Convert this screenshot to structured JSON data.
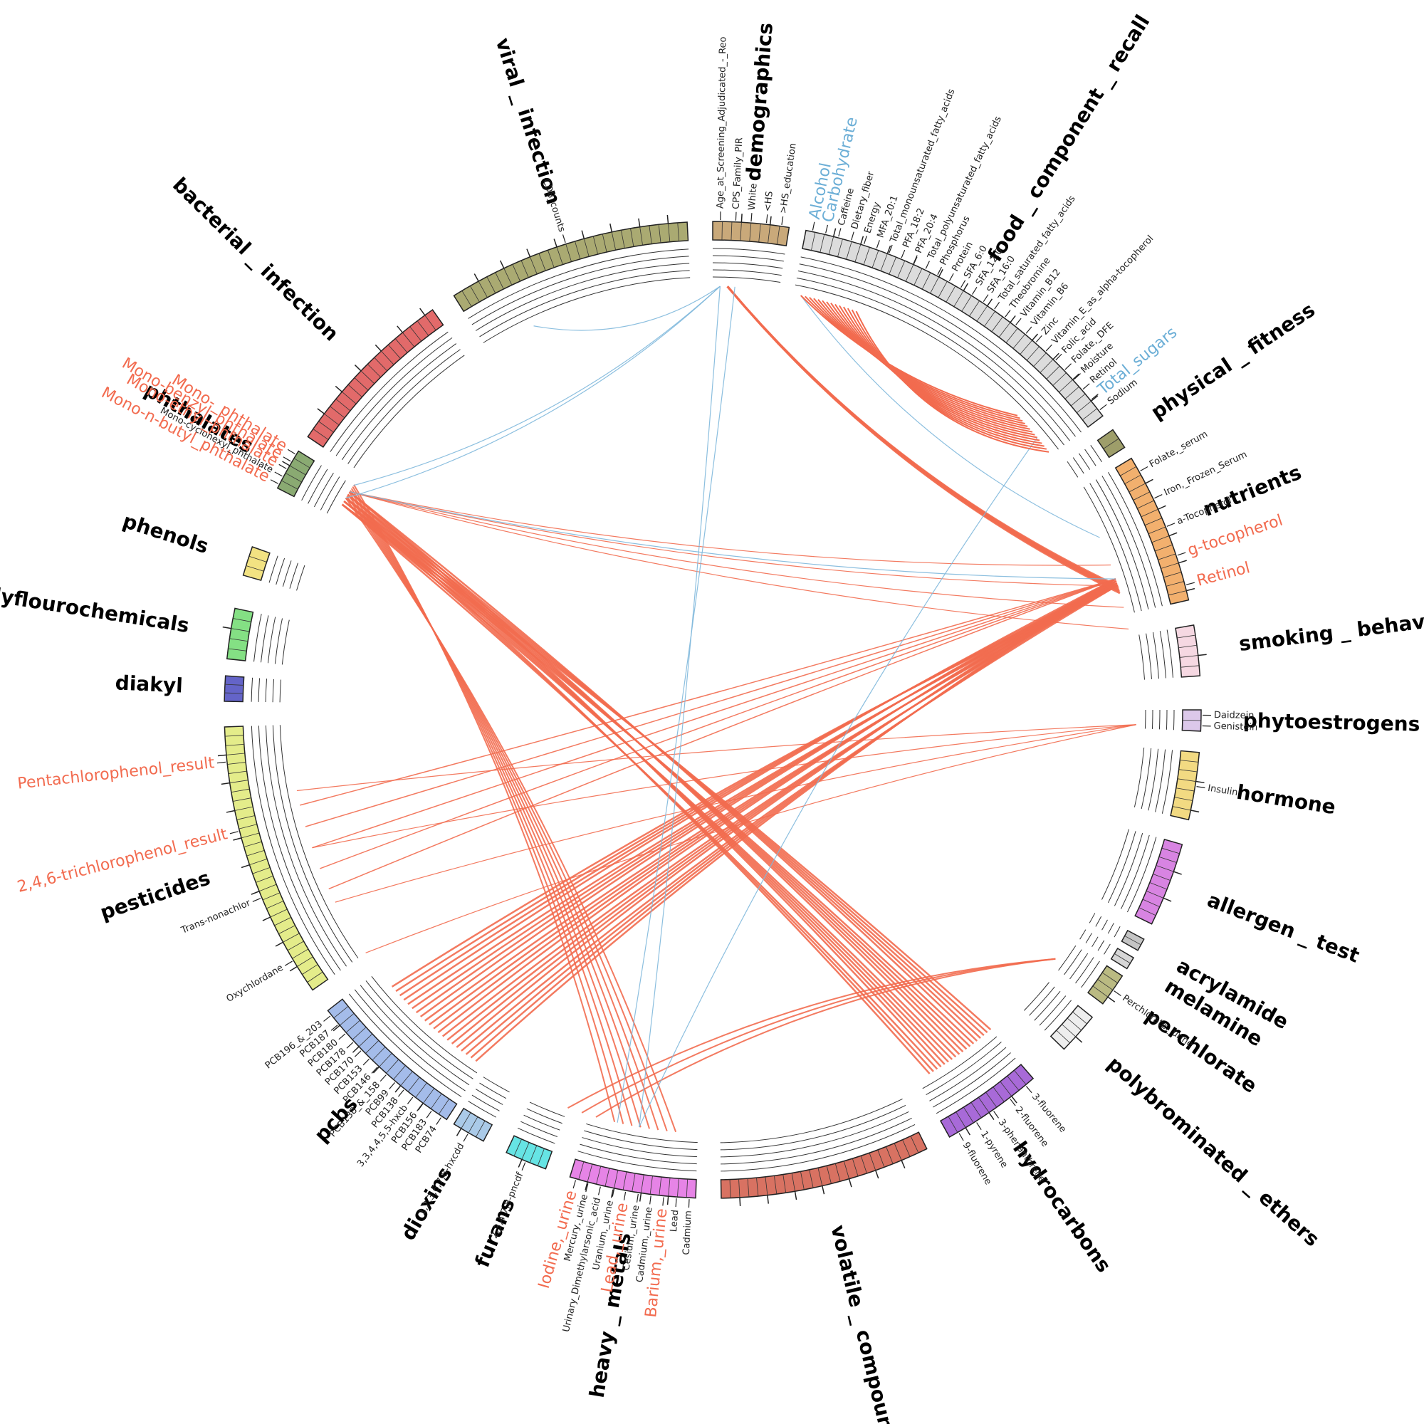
{
  "groups": [
    {
      "name": "demographics",
      "color": "#c9a97a",
      "features": [
        {
          "label": "Age_at_Screening_Adjudicated_-_Reo"
        },
        {
          "label": "CPS_Family_PIR"
        },
        {
          "label": "White"
        },
        {
          "label": "<HS"
        },
        {
          "label": ">HS_education"
        }
      ]
    },
    {
      "name": "food _ component _ recall",
      "color": "#dcdcdc",
      "features": [
        {
          "label": "Alcohol",
          "color": "#6baed6"
        },
        {
          "label": "Carbohydrate",
          "color": "#6baed6"
        },
        {
          "label": "Caffeine"
        },
        {
          "label": "Dietary_fiber"
        },
        {
          "label": "Energy"
        },
        {
          "label": "MFA_20:1"
        },
        {
          "label": "Total_monounsaturated_fatty_acids"
        },
        {
          "label": "PFA_18:2"
        },
        {
          "label": "PFA_20:4"
        },
        {
          "label": "Total_polyunsaturated_fatty_acids"
        },
        {
          "label": "Phosphorus"
        },
        {
          "label": "Protein"
        },
        {
          "label": "SFA_6:0"
        },
        {
          "label": "SFA_12:0"
        },
        {
          "label": "SFA_16:0"
        },
        {
          "label": "Total_saturated_fatty_acids"
        },
        {
          "label": "Theobromine"
        },
        {
          "label": "Vitamin_B12"
        },
        {
          "label": "Vitamin_B6"
        },
        {
          "label": "Zinc"
        },
        {
          "label": "Vitamin_E_as_alpha-tocopherol"
        },
        {
          "label": "Folic_acid"
        },
        {
          "label": "Folate,_DFE"
        },
        {
          "label": "Moisture"
        },
        {
          "label": "Retinol"
        },
        {
          "label": "Total_sugars",
          "color": "#6baed6"
        },
        {
          "label": "Sodium"
        }
      ]
    },
    {
      "name": "physical _ fitness",
      "color": "#9e9e6a",
      "features": []
    },
    {
      "name": "nutrients",
      "color": "#f2b06e",
      "features": [
        {
          "label": "Folate,_serum"
        },
        {
          "label": "Iron,_Frozen_Serum"
        },
        {
          "label": "a-Tocopherol"
        },
        {
          "label": "g-tocopherol",
          "color": "#f26b4f"
        },
        {
          "label": "Retinol",
          "color": "#f26b4f"
        }
      ]
    },
    {
      "name": "smoking _ behavior",
      "color": "#f6d8e2",
      "features": []
    },
    {
      "name": "phytoestrogens",
      "color": "#dcc8ea",
      "features": [
        {
          "label": "Daidzein"
        },
        {
          "label": "Genistein"
        }
      ]
    },
    {
      "name": "hormone",
      "color": "#f2da82",
      "features": [
        {
          "label": "Insulin"
        }
      ]
    },
    {
      "name": "allergen _ test",
      "color": "#d884e2",
      "features": []
    },
    {
      "name": "acrylamide",
      "color": "#c4c4c4",
      "features": []
    },
    {
      "name": "melamine",
      "color": "#d6d6d6",
      "features": []
    },
    {
      "name": "perchlorate",
      "color": "#baba82",
      "features": [
        {
          "label": "Perchlorate,_urine"
        }
      ]
    },
    {
      "name": "polybrominated _ ethers",
      "color": "#eeeeee",
      "features": []
    },
    {
      "name": "hydrocarbons",
      "color": "#a86ad8",
      "features": [
        {
          "label": "3-fluorene"
        },
        {
          "label": "2-fluorene"
        },
        {
          "label": "3-phenanthrene"
        },
        {
          "label": "1-pyrene"
        },
        {
          "label": "9-fluorene"
        }
      ]
    },
    {
      "name": "volatile _ compounds",
      "color": "#d87262",
      "features": []
    },
    {
      "name": "heavy _ metals",
      "color": "#e684e6",
      "features": [
        {
          "label": "Cadmium"
        },
        {
          "label": "Lead"
        },
        {
          "label": "Barium,_urine",
          "color": "#f26b4f"
        },
        {
          "label": "Cadmium,_urine"
        },
        {
          "label": "Cesium,_urine"
        },
        {
          "label": "Lead,_urine",
          "color": "#f26b4f"
        },
        {
          "label": "Uranium,_urine"
        },
        {
          "label": "Urinary_Dimethylarsonic_acid"
        },
        {
          "label": "Mercury,_urine"
        },
        {
          "label": "Iodine,_urine",
          "color": "#f26b4f"
        }
      ]
    },
    {
      "name": "furans",
      "color": "#66e4e4",
      "features": [
        {
          "label": "2,3,4,7,8-pncdf"
        }
      ]
    },
    {
      "name": "dioxins",
      "color": "#aacae8",
      "features": [
        {
          "label": "1,2,3,6,7,8-hxcdd"
        }
      ]
    },
    {
      "name": "pcbs",
      "color": "#a4bcea",
      "features": [
        {
          "label": "PCB74"
        },
        {
          "label": "PCB183"
        },
        {
          "label": "PCB156"
        },
        {
          "label": "3,3,4,4,5,5-hxcb"
        },
        {
          "label": "PCB138"
        },
        {
          "label": "PCB99"
        },
        {
          "label": "PCB138_&_158"
        },
        {
          "label": "PCB146"
        },
        {
          "label": "PCB153"
        },
        {
          "label": "PCB170"
        },
        {
          "label": "PCB178"
        },
        {
          "label": "PCB180"
        },
        {
          "label": "PCB187"
        },
        {
          "label": "PCB196_&_203"
        }
      ]
    },
    {
      "name": "pesticides",
      "color": "#e4ec8a",
      "features": [
        {
          "label": "Oxychlordane"
        },
        {
          "label": "Trans-nonachlor"
        },
        {
          "label": "2,4,6-trichlorophenol_result",
          "color": "#f26b4f"
        },
        {
          "label": "Pentachlorophenol_result",
          "color": "#f26b4f"
        }
      ]
    },
    {
      "name": "diakyl",
      "color": "#6464c8",
      "features": []
    },
    {
      "name": "polyflourochemicals",
      "color": "#84e084",
      "features": []
    },
    {
      "name": "phenols",
      "color": "#f2e282",
      "features": []
    },
    {
      "name": "phthalates",
      "color": "#8aaa72",
      "features": [
        {
          "label": "Mono-n-butyl_phthalate",
          "color": "#f26b4f"
        },
        {
          "label": "Mono-cyclohexyl_phthalate"
        },
        {
          "label": "Mono-ethyl_phthalate",
          "color": "#f26b4f"
        },
        {
          "label": "Mono-benzyl_phthalate",
          "color": "#f26b4f"
        },
        {
          "label": "Mono-_phthalate",
          "color": "#f26b4f"
        }
      ]
    },
    {
      "name": "bacterial _ infection",
      "color": "#e26a6a",
      "features": []
    },
    {
      "name": "viral _ infection",
      "color": "#aaaa72",
      "features": [
        {
          "label": "CD8_counts"
        }
      ]
    }
  ]
}
